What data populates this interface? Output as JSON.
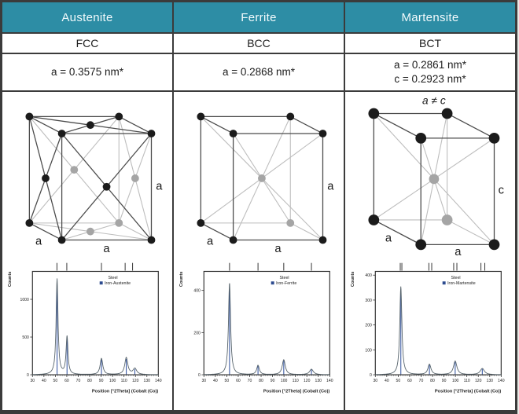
{
  "table": {
    "columns": [
      {
        "phase": "Austenite",
        "structure": "FCC",
        "lattice_a": "a = 0.3575 nm*",
        "lattice_c": ""
      },
      {
        "phase": "Ferrite",
        "structure": "BCC",
        "lattice_a": "a = 0.2868 nm*",
        "lattice_c": ""
      },
      {
        "phase": "Martensite",
        "structure": "BCT",
        "lattice_a": "a = 0.2861 nm*",
        "lattice_c": "c = 0.2923 nm*"
      }
    ]
  },
  "unit_cells": [
    {
      "kind": "fcc",
      "edge_labels": [
        "a",
        "a",
        "a"
      ],
      "note": ""
    },
    {
      "kind": "bcc",
      "edge_labels": [
        "a",
        "a",
        "a"
      ],
      "note": ""
    },
    {
      "kind": "bct",
      "edge_labels": [
        "a",
        "a",
        "c"
      ],
      "note": "a ≠ c"
    }
  ],
  "chart_data": [
    {
      "type": "line",
      "title": "",
      "ylabel": "Counts",
      "xlabel": "Position [°2Theta] (Cobalt (Co))",
      "legend": [
        "Steel",
        "Iron-Austenite"
      ],
      "legend_position": "top-right",
      "grid": false,
      "xlim": [
        30,
        140
      ],
      "ylim": [
        0,
        1370
      ],
      "xticks": [
        30,
        40,
        50,
        60,
        70,
        80,
        90,
        100,
        110,
        120,
        130,
        140
      ],
      "yticks": [
        0,
        500,
        1000
      ],
      "peaks": [
        {
          "x": 51.5,
          "counts": 1270,
          "hwhm": 1.0
        },
        {
          "x": 60.2,
          "counts": 505,
          "hwhm": 1.0
        },
        {
          "x": 90.3,
          "counts": 215,
          "hwhm": 1.4
        },
        {
          "x": 112.0,
          "counts": 225,
          "hwhm": 1.6
        },
        {
          "x": 119.5,
          "counts": 80,
          "hwhm": 1.9
        }
      ],
      "ref_ticks": [
        51.4,
        60.0,
        90.3,
        111.0,
        117.5
      ],
      "line_color": "#55626a",
      "ref_color": "#3b5aa3"
    },
    {
      "type": "line",
      "title": "",
      "ylabel": "Counts",
      "xlabel": "Position [°2Theta] (Cobalt (Co))",
      "legend": [
        "Steel",
        "Iron-Ferrite"
      ],
      "legend_position": "top-right",
      "grid": false,
      "xlim": [
        30,
        140
      ],
      "ylim": [
        0,
        490
      ],
      "xticks": [
        30,
        40,
        50,
        60,
        70,
        80,
        90,
        100,
        110,
        120,
        130,
        140
      ],
      "yticks": [
        0,
        200,
        400
      ],
      "peaks": [
        {
          "x": 52.4,
          "counts": 437,
          "hwhm": 1.1
        },
        {
          "x": 77.3,
          "counts": 44,
          "hwhm": 1.4
        },
        {
          "x": 99.8,
          "counts": 71,
          "hwhm": 1.6
        },
        {
          "x": 124.0,
          "counts": 26,
          "hwhm": 2.0
        }
      ],
      "ref_ticks": [
        52.4,
        77.3,
        99.8,
        124.0
      ],
      "line_color": "#55626a",
      "ref_color": "#3b5aa3"
    },
    {
      "type": "line",
      "title": "",
      "ylabel": "Counts",
      "xlabel": "Position [°2Theta] (Cobalt (Co))",
      "legend": [
        "Steel",
        "Iron-Martensite"
      ],
      "legend_position": "top-right",
      "grid": false,
      "xlim": [
        30,
        140
      ],
      "ylim": [
        0,
        415
      ],
      "xticks": [
        30,
        40,
        50,
        60,
        70,
        80,
        90,
        100,
        110,
        120,
        130,
        140
      ],
      "yticks": [
        0,
        100,
        200,
        300,
        400
      ],
      "peaks": [
        {
          "x": 52.3,
          "counts": 355,
          "hwhm": 1.1
        },
        {
          "x": 77.3,
          "counts": 42,
          "hwhm": 1.6
        },
        {
          "x": 99.8,
          "counts": 55,
          "hwhm": 1.8
        },
        {
          "x": 123.5,
          "counts": 25,
          "hwhm": 2.2
        }
      ],
      "ref_ticks": [
        51.8,
        53.2,
        76.8,
        79.3,
        98.5,
        101.3,
        122.3,
        125.7
      ],
      "line_color": "#55626a",
      "ref_color": "#3b5aa3"
    }
  ],
  "colors": {
    "header_bg": "#2d8da5",
    "header_text": "#f2fafc",
    "border": "#3b3b3b",
    "legend_square": "#2c4a8f",
    "atom_black": "#1b1b1b",
    "atom_gray": "#a5a5a5"
  }
}
